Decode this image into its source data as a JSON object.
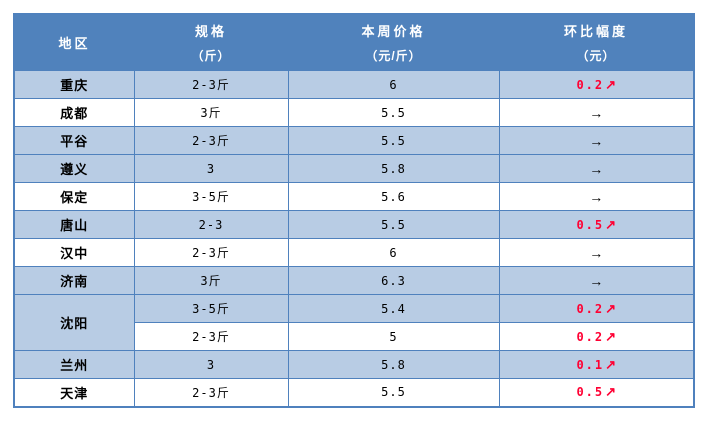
{
  "table": {
    "headers": [
      {
        "title": "地区",
        "unit": ""
      },
      {
        "title": "规格",
        "unit": "（斤）"
      },
      {
        "title": "本周价格",
        "unit": "（元/斤）"
      },
      {
        "title": "环比幅度",
        "unit": "（元）"
      }
    ],
    "rows": [
      {
        "region": "重庆",
        "rowspan": 1,
        "spec": "2-3斤",
        "price": "6",
        "change": "0.2",
        "direction": "up",
        "shade": true
      },
      {
        "region": "成都",
        "rowspan": 1,
        "spec": "3斤",
        "price": "5.5",
        "change": "",
        "direction": "flat",
        "shade": false
      },
      {
        "region": "平谷",
        "rowspan": 1,
        "spec": "2-3斤",
        "price": "5.5",
        "change": "",
        "direction": "flat",
        "shade": true
      },
      {
        "region": "遵义",
        "rowspan": 1,
        "spec": "3",
        "price": "5.8",
        "change": "",
        "direction": "flat",
        "shade": true
      },
      {
        "region": "保定",
        "rowspan": 1,
        "spec": "3-5斤",
        "price": "5.6",
        "change": "",
        "direction": "flat",
        "shade": false
      },
      {
        "region": "唐山",
        "rowspan": 1,
        "spec": "2-3",
        "price": "5.5",
        "change": "0.5",
        "direction": "up",
        "shade": true
      },
      {
        "region": "汉中",
        "rowspan": 1,
        "spec": "2-3斤",
        "price": "6",
        "change": "",
        "direction": "flat",
        "shade": false
      },
      {
        "region": "济南",
        "rowspan": 1,
        "spec": "3斤",
        "price": "6.3",
        "change": "",
        "direction": "flat",
        "shade": true
      },
      {
        "region": "沈阳",
        "rowspan": 2,
        "spec": "3-5斤",
        "price": "5.4",
        "change": "0.2",
        "direction": "up",
        "shade": true
      },
      {
        "region": null,
        "rowspan": 0,
        "spec": "2-3斤",
        "price": "5",
        "change": "0.2",
        "direction": "up",
        "shade": false
      },
      {
        "region": "兰州",
        "rowspan": 1,
        "spec": "3",
        "price": "5.8",
        "change": "0.1",
        "direction": "up",
        "shade": true
      },
      {
        "region": "天津",
        "rowspan": 1,
        "spec": "2-3斤",
        "price": "5.5",
        "change": "0.5",
        "direction": "up",
        "shade": false
      }
    ]
  },
  "icons": {
    "up_arrow": "↗",
    "flat_arrow": "→"
  },
  "colors": {
    "header_bg": "#5082bc",
    "header_text": "#ffffff",
    "row_shade": "#b8cce4",
    "row_plain": "#ffffff",
    "border": "#4f81bd",
    "text": "#000000",
    "accent_up": "#ff0033"
  },
  "chart_data": {
    "type": "table",
    "columns": [
      "地区",
      "规格（斤）",
      "本周价格（元/斤）",
      "环比幅度（元）"
    ],
    "rows": [
      [
        "重庆",
        "2-3斤",
        "6",
        "0.2↗"
      ],
      [
        "成都",
        "3斤",
        "5.5",
        "→"
      ],
      [
        "平谷",
        "2-3斤",
        "5.5",
        "→"
      ],
      [
        "遵义",
        "3",
        "5.8",
        "→"
      ],
      [
        "保定",
        "3-5斤",
        "5.6",
        "→"
      ],
      [
        "唐山",
        "2-3",
        "5.5",
        "0.5↗"
      ],
      [
        "汉中",
        "2-3斤",
        "6",
        "→"
      ],
      [
        "济南",
        "3斤",
        "6.3",
        "→"
      ],
      [
        "沈阳",
        "3-5斤",
        "5.4",
        "0.2↗"
      ],
      [
        "沈阳",
        "2-3斤",
        "5",
        "0.2↗"
      ],
      [
        "兰州",
        "3",
        "5.8",
        "0.1↗"
      ],
      [
        "天津",
        "2-3斤",
        "5.5",
        "0.5↗"
      ]
    ],
    "legend_position": "none",
    "grid": true
  }
}
